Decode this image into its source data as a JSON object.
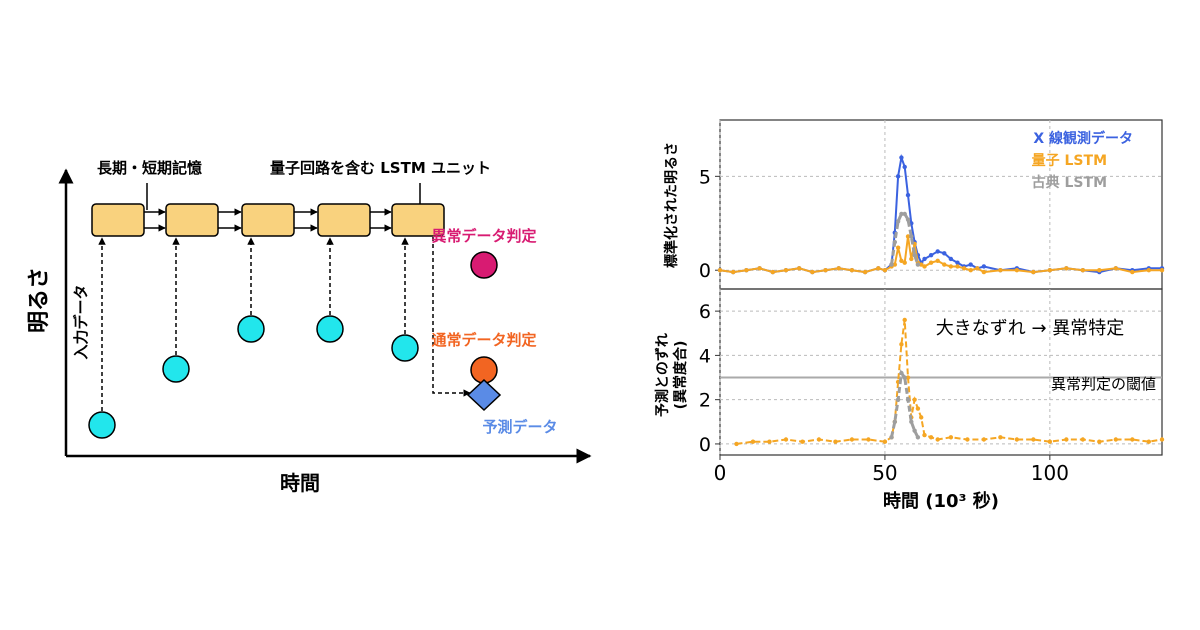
{
  "diagram": {
    "y_axis_label": "明るさ",
    "x_axis_label": "時間",
    "memory_label": "長期・短期記憶",
    "unit_label": "量子回路を含む LSTM ユニット",
    "input_label": "入力データ",
    "anomaly_label": "異常データ判定",
    "normal_label": "通常データ判定",
    "prediction_label": "予測データ",
    "colors": {
      "input": "#22e6ec",
      "unit_fill": "#f9d27e",
      "anomaly": "#d81b72",
      "normal": "#f26522",
      "prediction": "#5a8be6",
      "anomaly_text": "#d81b72",
      "normal_text": "#f26522",
      "prediction_text": "#5a8be6"
    }
  },
  "chart_data": [
    {
      "type": "line",
      "ylabel": "標準化された明るさ",
      "ylim": [
        -1,
        8
      ],
      "yticks": [
        0,
        5
      ],
      "grid": true,
      "legend_position": "top-right",
      "series": [
        {
          "name": "X 線観測データ",
          "color": "#3b62e0",
          "x": [
            0,
            4,
            8,
            12,
            16,
            20,
            24,
            28,
            32,
            36,
            40,
            44,
            48,
            50,
            52,
            53,
            54,
            55,
            56,
            57,
            58,
            59,
            60,
            61,
            62,
            64,
            66,
            68,
            70,
            72,
            74,
            76,
            78,
            80,
            85,
            90,
            95,
            100,
            105,
            110,
            115,
            120,
            125,
            130,
            134
          ],
          "y": [
            0,
            -0.1,
            0,
            0.1,
            -0.1,
            0,
            0.1,
            -0.1,
            0,
            0.1,
            0,
            -0.1,
            0.1,
            0,
            0.3,
            2,
            5,
            6,
            5.5,
            4,
            2.5,
            1.5,
            0.8,
            0.4,
            0.6,
            0.8,
            1,
            0.9,
            0.6,
            0.4,
            0.2,
            0.3,
            0.1,
            0.2,
            0,
            0.1,
            -0.1,
            0,
            0.1,
            0,
            -0.1,
            0.1,
            0,
            0.1,
            0.1
          ]
        },
        {
          "name": "量子 LSTM",
          "color": "#f5a623",
          "x": [
            0,
            4,
            8,
            12,
            16,
            20,
            24,
            28,
            32,
            36,
            40,
            44,
            48,
            50,
            52,
            53,
            54,
            55,
            56,
            57,
            58,
            59,
            60,
            61,
            62,
            64,
            66,
            68,
            70,
            72,
            74,
            76,
            78,
            80,
            85,
            90,
            95,
            100,
            105,
            110,
            115,
            120,
            125,
            130,
            134
          ],
          "y": [
            0,
            -0.1,
            0,
            0.1,
            -0.1,
            0,
            0.1,
            -0.1,
            0,
            0.1,
            0,
            -0.1,
            0.1,
            0,
            0.2,
            0.3,
            1.2,
            0.5,
            0.4,
            1.8,
            0.6,
            1.4,
            0.4,
            0.3,
            0.2,
            0.4,
            0.5,
            0.3,
            0.2,
            0.2,
            0.1,
            0,
            0.1,
            -0.1,
            0,
            0,
            -0.1,
            0,
            0.1,
            0,
            0,
            0.1,
            -0.1,
            0,
            0
          ]
        },
        {
          "name": "古典 LSTM",
          "color": "#9e9e9e",
          "x": [
            52,
            53,
            54,
            55,
            56,
            57,
            58,
            59,
            60
          ],
          "y": [
            0.3,
            1.5,
            2.6,
            3,
            3,
            2.7,
            1.8,
            0.8,
            0.3
          ]
        }
      ]
    },
    {
      "type": "line",
      "xlabel": "時間 (10³ 秒)",
      "ylabel": "予測とのずれ\n(異常度合)",
      "xlim": [
        0,
        134
      ],
      "ylim": [
        -0.5,
        7
      ],
      "xticks": [
        0,
        50,
        100
      ],
      "yticks": [
        0,
        2,
        4,
        6
      ],
      "grid": true,
      "threshold": 3.0,
      "threshold_label": "異常判定の閾値",
      "annotation": "大きなずれ → 異常特定",
      "series": [
        {
          "name": "量子 LSTM",
          "color": "#f5a623",
          "x": [
            5,
            10,
            15,
            20,
            25,
            30,
            35,
            40,
            45,
            50,
            52,
            53,
            54,
            55,
            56,
            57,
            58,
            59,
            60,
            61,
            62,
            64,
            66,
            70,
            75,
            80,
            85,
            90,
            95,
            100,
            105,
            110,
            115,
            120,
            125,
            130,
            134
          ],
          "y": [
            0,
            0.1,
            0.1,
            0.2,
            0.1,
            0.2,
            0.1,
            0.2,
            0.2,
            0.1,
            0.3,
            1,
            2.8,
            4.5,
            5.6,
            3,
            1.2,
            2,
            1.6,
            1.2,
            0.4,
            0.3,
            0.2,
            0.3,
            0.2,
            0.2,
            0.3,
            0.2,
            0.2,
            0.1,
            0.2,
            0.2,
            0.1,
            0.2,
            0.2,
            0.1,
            0.2
          ]
        },
        {
          "name": "古典 LSTM",
          "color": "#9e9e9e",
          "x": [
            52,
            53,
            54,
            55,
            56,
            57,
            58,
            59,
            60
          ],
          "y": [
            0.3,
            1,
            2,
            3.2,
            3,
            2,
            1,
            0.6,
            0.3
          ]
        }
      ]
    }
  ]
}
